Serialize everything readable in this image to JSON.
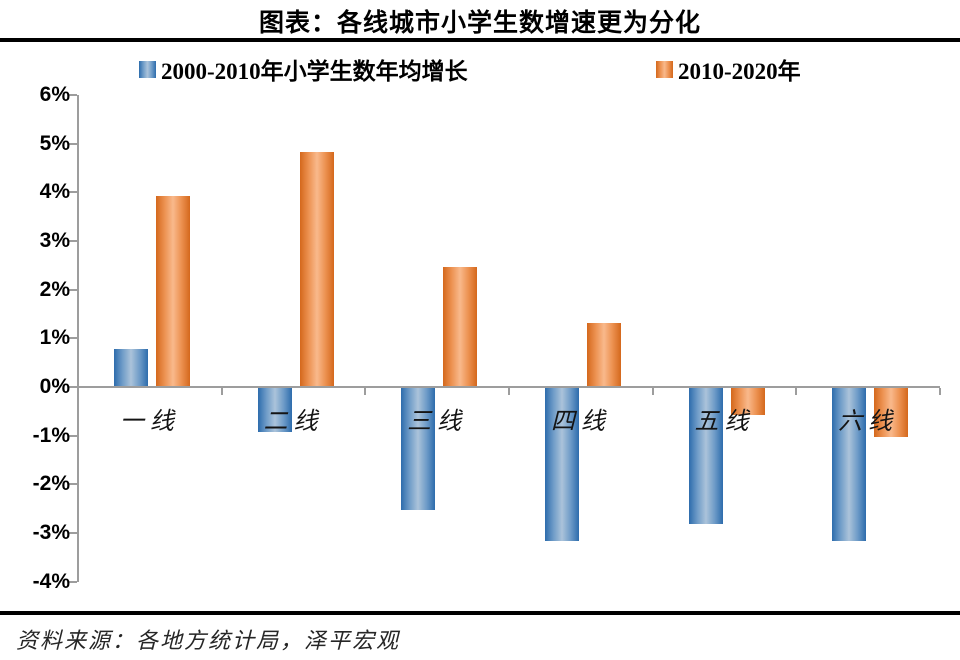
{
  "title": "图表：各线城市小学生数增速更为分化",
  "source": "资料来源：各地方统计局，泽平宏观",
  "colors": {
    "blue_dark": "#2d6cac",
    "blue_light": "#abc3da",
    "orange_dark": "#d4681c",
    "orange_light": "#f9b98c",
    "axis_gray": "#9d9d9d",
    "divider_black": "#000000"
  },
  "legend": {
    "items": [
      {
        "label": "2000-2010年小学生数年均增长",
        "swatch": "blue-square-icon"
      },
      {
        "label": "2010-2020年",
        "swatch": "orange-square-icon"
      }
    ],
    "position": "top"
  },
  "chart_data": {
    "type": "bar",
    "categories": [
      "一线",
      "二线",
      "三线",
      "四线",
      "五线",
      "六线"
    ],
    "series": [
      {
        "name": "2000-2010年小学生数年均增长",
        "color": "blue",
        "values": [
          0.75,
          -0.9,
          -2.5,
          -3.15,
          -2.8,
          -3.15
        ]
      },
      {
        "name": "2010-2020年",
        "color": "orange",
        "values": [
          3.9,
          4.8,
          2.45,
          1.3,
          -0.55,
          -1.0
        ]
      }
    ],
    "title": "图表：各线城市小学生数增速更为分化",
    "xlabel": "",
    "ylabel": "",
    "ylim": [
      -4,
      6
    ],
    "ytick_step": 1,
    "ytick_labels": [
      "6%",
      "5%",
      "4%",
      "3%",
      "2%",
      "1%",
      "0%",
      "-1%",
      "-2%",
      "-3%",
      "-4%"
    ],
    "grid": false,
    "legend_position": "top"
  }
}
